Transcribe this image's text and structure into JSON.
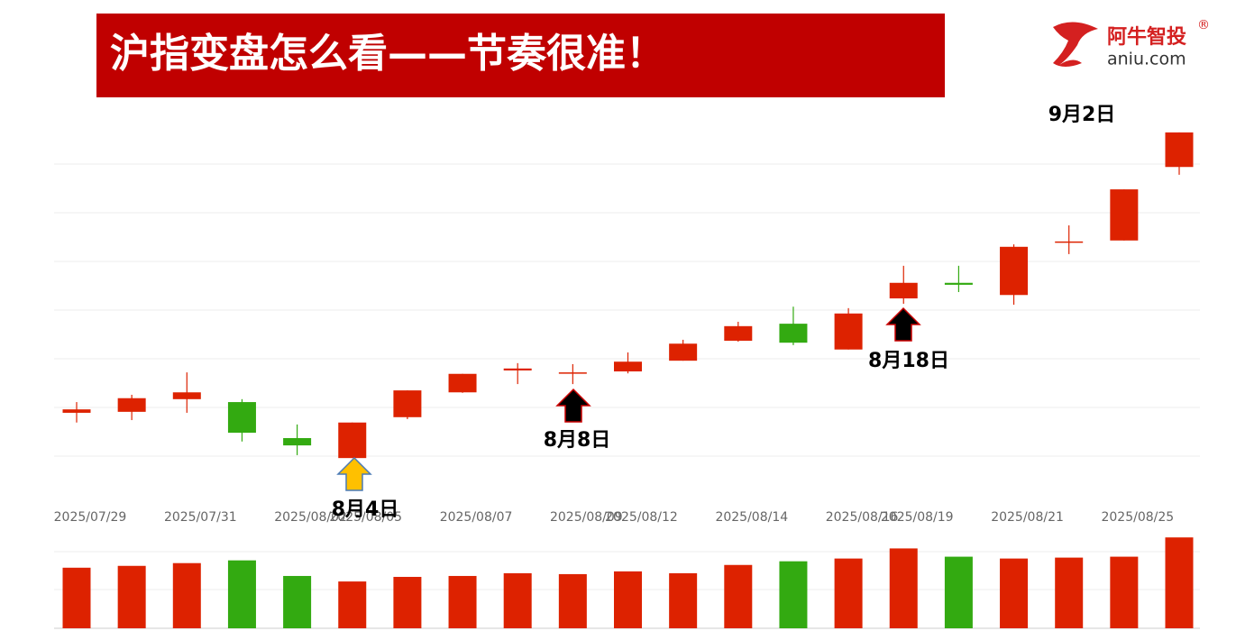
{
  "header": {
    "title": "沪指变盘怎么看——节奏很准！",
    "logo": "阿牛智投",
    "site": "aniu.com",
    "mark": "®"
  },
  "chart_data": {
    "type": "candlestick",
    "categories": [
      "2025/07/29",
      null,
      "2025/07/31",
      null,
      "2025/08/02",
      "2025/08/05",
      null,
      "2025/08/07",
      null,
      "2025/08/09",
      "2025/08/12",
      null,
      "2025/08/14",
      null,
      "2025/08/16",
      "2025/08/19",
      null,
      "2025/08/21",
      null,
      "2025/08/25",
      null
    ],
    "open": [
      18.9,
      19.1,
      21.7,
      21.1,
      13.7,
      9.6,
      18.0,
      23.1,
      27.6,
      27.0,
      27.4,
      29.6,
      33.7,
      37.2,
      31.9,
      42.4,
      45.6,
      43.1,
      53.9,
      54.3,
      69.4
    ],
    "close": [
      19.6,
      21.9,
      23.1,
      14.8,
      12.2,
      16.9,
      23.5,
      26.9,
      28.0,
      27.2,
      29.4,
      33.1,
      36.7,
      33.3,
      39.3,
      45.6,
      45.2,
      53.0,
      54.1,
      64.8,
      76.5
    ],
    "high": [
      21.1,
      22.6,
      27.2,
      21.7,
      16.5,
      16.9,
      23.5,
      26.9,
      29.1,
      28.9,
      31.3,
      33.9,
      37.6,
      40.7,
      40.4,
      49.1,
      49.1,
      53.5,
      57.4,
      64.8,
      76.5
    ],
    "low": [
      16.9,
      17.4,
      18.9,
      13.0,
      10.2,
      9.6,
      17.6,
      23.0,
      24.8,
      24.8,
      27.0,
      29.6,
      33.5,
      32.8,
      31.9,
      41.3,
      43.7,
      41.1,
      51.5,
      54.3,
      67.8
    ],
    "volume": [
      66,
      68,
      71,
      74,
      57,
      51,
      56,
      57,
      60,
      59,
      62,
      60,
      69,
      73,
      76,
      87,
      78,
      76,
      77,
      78,
      99
    ],
    "up_color": "#dd2200",
    "down_color": "#33aa11",
    "ylim": [
      0,
      80
    ],
    "ygrid": [
      10,
      20,
      30,
      40,
      50,
      60,
      70
    ],
    "vlim": [
      0,
      110
    ],
    "annotations": [
      "8月4日",
      "8月8日",
      "8月18日",
      "9月2日"
    ]
  }
}
